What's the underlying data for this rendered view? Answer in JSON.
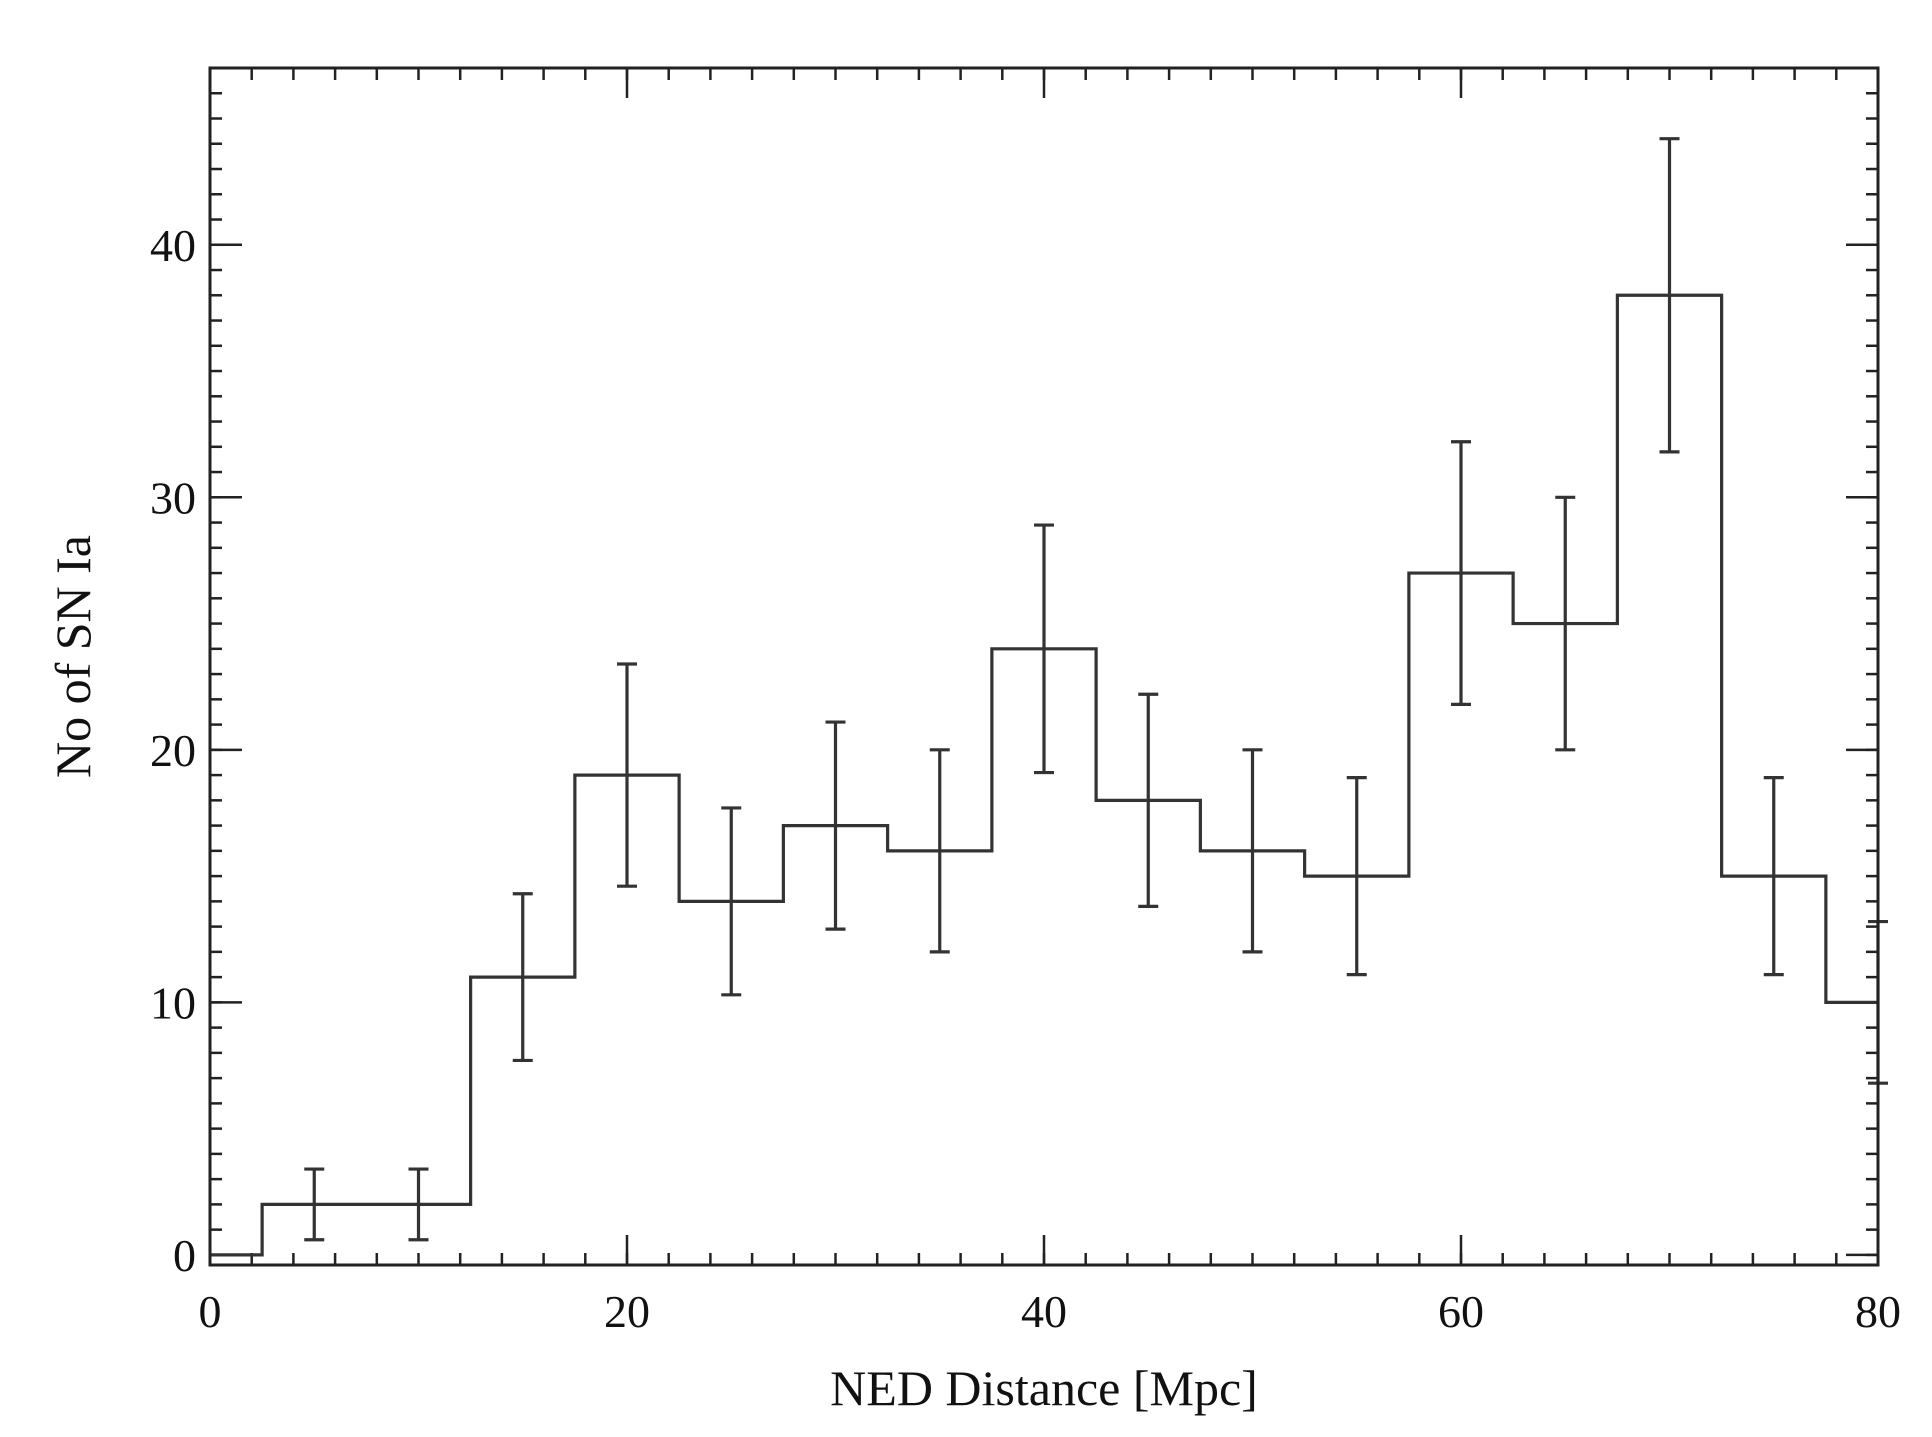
{
  "chart_data": {
    "type": "histogram",
    "xlabel": "NED Distance [Mpc]",
    "ylabel": "No of SN Ia",
    "xlim": [
      0,
      80
    ],
    "ylim": [
      -0.4,
      47
    ],
    "x_ticks": [
      0,
      20,
      40,
      60,
      80
    ],
    "x_tick_labels": [
      "0",
      "20",
      "40",
      "60",
      "80"
    ],
    "y_ticks": [
      0,
      10,
      20,
      30,
      40
    ],
    "y_tick_labels": [
      "0",
      "10",
      "20",
      "30",
      "40"
    ],
    "x_minor_step": 2,
    "y_minor_step": 1,
    "bin_width": 5,
    "line_color": "#333333",
    "bins": [
      {
        "from": 0,
        "to": 2.5,
        "count": 0
      },
      {
        "from": 2.5,
        "to": 7.5,
        "count": 2
      },
      {
        "from": 7.5,
        "to": 12.5,
        "count": 2
      },
      {
        "from": 12.5,
        "to": 17.5,
        "count": 11
      },
      {
        "from": 17.5,
        "to": 22.5,
        "count": 19
      },
      {
        "from": 22.5,
        "to": 27.5,
        "count": 14
      },
      {
        "from": 27.5,
        "to": 32.5,
        "count": 17
      },
      {
        "from": 32.5,
        "to": 37.5,
        "count": 16
      },
      {
        "from": 37.5,
        "to": 42.5,
        "count": 24
      },
      {
        "from": 42.5,
        "to": 47.5,
        "count": 18
      },
      {
        "from": 47.5,
        "to": 52.5,
        "count": 16
      },
      {
        "from": 52.5,
        "to": 57.5,
        "count": 15
      },
      {
        "from": 57.5,
        "to": 62.5,
        "count": 27
      },
      {
        "from": 62.5,
        "to": 67.5,
        "count": 25
      },
      {
        "from": 67.5,
        "to": 72.5,
        "count": 38
      },
      {
        "from": 72.5,
        "to": 77.5,
        "count": 15
      },
      {
        "from": 77.5,
        "to": 80,
        "count": 10
      }
    ],
    "error_bars": [
      {
        "x": 5,
        "low": 0.6,
        "high": 3.4
      },
      {
        "x": 10,
        "low": 0.6,
        "high": 3.4
      },
      {
        "x": 15,
        "low": 7.7,
        "high": 14.3
      },
      {
        "x": 20,
        "low": 14.6,
        "high": 23.4
      },
      {
        "x": 25,
        "low": 10.3,
        "high": 17.7
      },
      {
        "x": 30,
        "low": 12.9,
        "high": 21.1
      },
      {
        "x": 35,
        "low": 12,
        "high": 20
      },
      {
        "x": 40,
        "low": 19.1,
        "high": 28.9
      },
      {
        "x": 45,
        "low": 13.8,
        "high": 22.2
      },
      {
        "x": 50,
        "low": 12,
        "high": 20
      },
      {
        "x": 55,
        "low": 11.1,
        "high": 18.9
      },
      {
        "x": 60,
        "low": 21.8,
        "high": 32.2
      },
      {
        "x": 65,
        "low": 20,
        "high": 30
      },
      {
        "x": 70,
        "low": 31.8,
        "high": 44.2
      },
      {
        "x": 75,
        "low": 11.1,
        "high": 18.9
      },
      {
        "x": 80,
        "low": 6.8,
        "high": 13.2
      }
    ]
  }
}
